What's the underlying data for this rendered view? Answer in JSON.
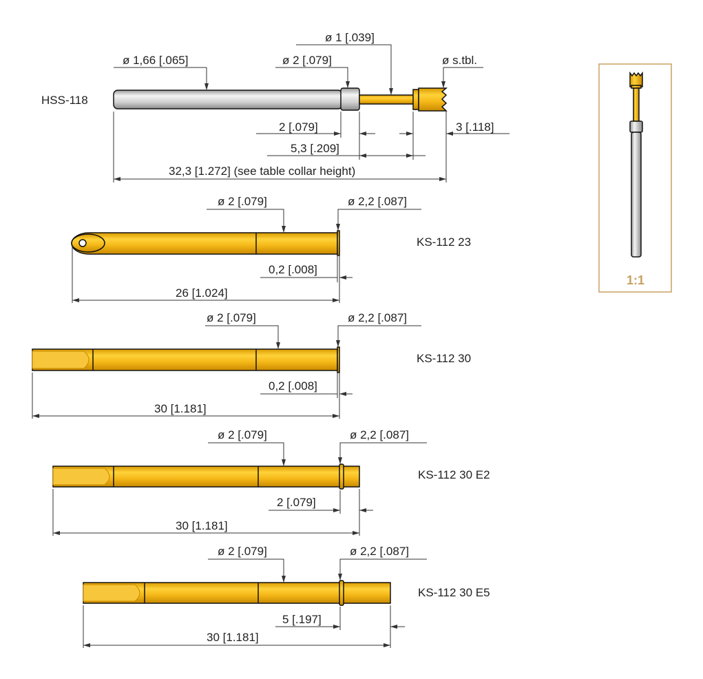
{
  "colors": {
    "gold": "#f2b418",
    "silver": "#c9c9c9",
    "frame": "#c8a060",
    "line": "#333333"
  },
  "scale": {
    "label": "1:1"
  },
  "parts": [
    {
      "name": "HSS-118",
      "dims": [
        "ø 1,66 [.065]",
        "ø 2 [.079]",
        "ø 1 [.039]",
        "ø s.tbl.",
        "2 [.079]",
        "3 [.118]",
        "5,3 [.209]",
        "32,3 [1.272] (see table collar height)"
      ]
    },
    {
      "name": "KS-112 23",
      "dims": [
        "ø 2 [.079]",
        "ø 2,2 [.087]",
        "0,2 [.008]",
        "26 [1.024]"
      ]
    },
    {
      "name": "KS-112 30",
      "dims": [
        "ø 2 [.079]",
        "ø 2,2 [.087]",
        "0,2 [.008]",
        "30 [1.181]"
      ]
    },
    {
      "name": "KS-112 30 E2",
      "dims": [
        "ø 2 [.079]",
        "ø 2,2 [.087]",
        "2 [.079]",
        "30 [1.181]"
      ]
    },
    {
      "name": "KS-112 30 E5",
      "dims": [
        "ø 2 [.079]",
        "ø 2,2 [.087]",
        "5 [.197]",
        "30 [1.181]"
      ]
    }
  ]
}
